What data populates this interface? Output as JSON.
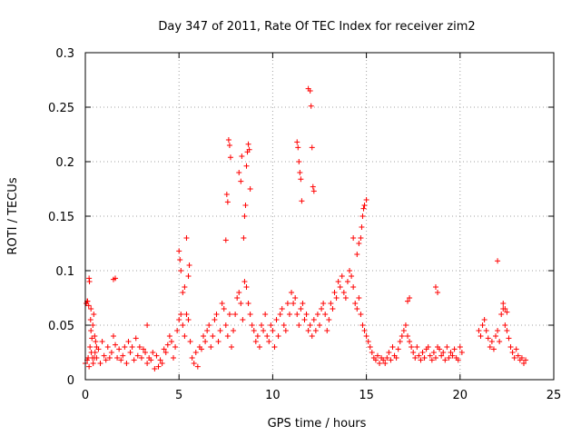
{
  "chart_data": {
    "type": "scatter",
    "title": "Day 347 of 2011, Rate Of TEC Index for receiver zim2",
    "xlabel": "GPS time / hours",
    "ylabel": "ROTI / TECUs",
    "xlim": [
      0,
      25
    ],
    "ylim": [
      0,
      0.3
    ],
    "x_ticks": [
      0,
      5,
      10,
      15,
      20,
      25
    ],
    "y_ticks": [
      0,
      0.05,
      0.1,
      0.15,
      0.2,
      0.25,
      0.3
    ],
    "x_tick_labels": [
      "0",
      "5",
      "10",
      "15",
      "20",
      "25"
    ],
    "y_tick_labels": [
      "0",
      "0.05",
      "0.1",
      "0.15",
      "0.2",
      "0.25",
      "0.3"
    ],
    "grid": true,
    "marker": "plus",
    "marker_color": "#ff0000",
    "series": [
      {
        "x": [
          0.0,
          0.1,
          0.15,
          0.2,
          0.25,
          0.3,
          0.35,
          0.4,
          0.45,
          0.5,
          0.55,
          0.6,
          0.05,
          0.12,
          0.18,
          0.22,
          0.28,
          0.32,
          0.38,
          0.42,
          0.48,
          0.52,
          0.6,
          0.7,
          0.8,
          0.9,
          1.0,
          1.1,
          1.2,
          1.3,
          1.4,
          1.5,
          1.6,
          1.7,
          1.8,
          1.9,
          2.0,
          2.1,
          2.2,
          2.3,
          2.4,
          2.5,
          2.6,
          2.7,
          2.8,
          2.9,
          3.0,
          3.1,
          3.2,
          3.3,
          3.4,
          3.5,
          3.6,
          3.7,
          3.8,
          3.9,
          4.0,
          4.1,
          4.2,
          4.3,
          4.4,
          4.5,
          4.6,
          4.7,
          4.8,
          4.9,
          5.0,
          5.1,
          5.2,
          5.3,
          5.4,
          5.5,
          5.6,
          5.7,
          5.8,
          5.9,
          6.0,
          6.1,
          6.2,
          6.3,
          6.4,
          6.5,
          6.6,
          6.7,
          6.8,
          6.9,
          7.0,
          7.1,
          7.2,
          7.3,
          7.4,
          7.5,
          7.6,
          7.7,
          7.8,
          7.9,
          8.0,
          8.1,
          8.2,
          8.3,
          8.4,
          8.5,
          8.6,
          8.7,
          8.8,
          8.9,
          9.0,
          9.1,
          9.2,
          9.3,
          9.4,
          9.5,
          9.6,
          9.7,
          9.8,
          9.9,
          10.0,
          10.1,
          10.2,
          10.3,
          10.4,
          10.5,
          10.6,
          10.7,
          10.8,
          10.9,
          11.0,
          11.1,
          11.2,
          11.3,
          11.4,
          11.5,
          11.6,
          11.7,
          11.8,
          11.9,
          12.0,
          12.1,
          12.2,
          12.3,
          12.4,
          12.5,
          12.6,
          12.7,
          12.8,
          12.9,
          13.0,
          13.1,
          13.2,
          13.3,
          13.4,
          13.5,
          13.6,
          13.7,
          13.8,
          13.9,
          14.0,
          14.1,
          14.2,
          14.3,
          14.4,
          14.5,
          14.6,
          14.7,
          14.8,
          14.9,
          15.0,
          15.1,
          15.2,
          15.3,
          15.4,
          15.5,
          15.6,
          15.7,
          15.8,
          15.9,
          16.0,
          16.1,
          16.2,
          16.3,
          16.4,
          16.5,
          16.6,
          16.7,
          16.8,
          16.9,
          17.0,
          17.1,
          17.2,
          17.3,
          17.4,
          17.5,
          17.6,
          17.7,
          17.8,
          17.9,
          18.0,
          18.1,
          18.2,
          18.3,
          18.4,
          18.5,
          18.6,
          18.7,
          18.8,
          18.9,
          19.0,
          19.1,
          19.2,
          19.3,
          19.4,
          19.5,
          19.6,
          19.7,
          19.8,
          19.9,
          20.0,
          20.1,
          21.0,
          21.1,
          21.2,
          21.3,
          21.4,
          21.5,
          21.6,
          21.7,
          21.8,
          21.9,
          22.0,
          22.1,
          22.2,
          22.3,
          22.4,
          22.5,
          22.6,
          22.7,
          22.8,
          22.9,
          23.0,
          23.1,
          23.2,
          23.3,
          23.4,
          23.5,
          0.1,
          0.2,
          0.3,
          1.5,
          1.6,
          3.3,
          5.0,
          5.05,
          5.1,
          5.2,
          5.3,
          5.4,
          5.5,
          5.55,
          7.5,
          7.55,
          7.6,
          7.65,
          7.7,
          7.75,
          8.2,
          8.3,
          8.35,
          8.45,
          8.5,
          8.55,
          8.6,
          8.65,
          8.7,
          8.75,
          8.8,
          11.3,
          11.35,
          11.4,
          11.45,
          11.5,
          11.55,
          11.9,
          12.0,
          12.05,
          12.1,
          12.15,
          12.2,
          14.3,
          14.5,
          14.6,
          14.7,
          14.75,
          14.8,
          14.85,
          14.9,
          15.0,
          17.2,
          17.3,
          18.7,
          18.8,
          22.0,
          22.3,
          22.4,
          22.5
        ],
        "y": [
          0.015,
          0.018,
          0.02,
          0.012,
          0.03,
          0.045,
          0.038,
          0.05,
          0.06,
          0.04,
          0.035,
          0.03,
          0.07,
          0.072,
          0.068,
          0.09,
          0.055,
          0.025,
          0.02,
          0.015,
          0.02,
          0.025,
          0.02,
          0.028,
          0.015,
          0.035,
          0.022,
          0.018,
          0.03,
          0.02,
          0.025,
          0.04,
          0.032,
          0.02,
          0.028,
          0.018,
          0.022,
          0.03,
          0.015,
          0.035,
          0.025,
          0.03,
          0.018,
          0.038,
          0.022,
          0.03,
          0.02,
          0.028,
          0.025,
          0.015,
          0.02,
          0.018,
          0.025,
          0.01,
          0.022,
          0.012,
          0.018,
          0.015,
          0.028,
          0.025,
          0.032,
          0.04,
          0.035,
          0.02,
          0.03,
          0.045,
          0.055,
          0.06,
          0.05,
          0.04,
          0.06,
          0.055,
          0.035,
          0.02,
          0.015,
          0.025,
          0.012,
          0.03,
          0.028,
          0.04,
          0.035,
          0.045,
          0.05,
          0.03,
          0.04,
          0.055,
          0.06,
          0.035,
          0.045,
          0.07,
          0.065,
          0.05,
          0.04,
          0.06,
          0.03,
          0.045,
          0.06,
          0.075,
          0.08,
          0.07,
          0.055,
          0.09,
          0.085,
          0.07,
          0.06,
          0.05,
          0.045,
          0.035,
          0.04,
          0.03,
          0.05,
          0.045,
          0.06,
          0.04,
          0.035,
          0.05,
          0.045,
          0.03,
          0.055,
          0.04,
          0.06,
          0.065,
          0.05,
          0.045,
          0.07,
          0.06,
          0.08,
          0.07,
          0.075,
          0.06,
          0.05,
          0.065,
          0.07,
          0.055,
          0.06,
          0.045,
          0.05,
          0.04,
          0.055,
          0.045,
          0.06,
          0.05,
          0.065,
          0.07,
          0.06,
          0.045,
          0.055,
          0.07,
          0.065,
          0.08,
          0.075,
          0.09,
          0.085,
          0.095,
          0.08,
          0.075,
          0.09,
          0.1,
          0.095,
          0.085,
          0.07,
          0.065,
          0.075,
          0.06,
          0.05,
          0.045,
          0.04,
          0.035,
          0.03,
          0.025,
          0.02,
          0.018,
          0.022,
          0.015,
          0.02,
          0.018,
          0.015,
          0.02,
          0.025,
          0.018,
          0.03,
          0.022,
          0.02,
          0.028,
          0.035,
          0.04,
          0.045,
          0.05,
          0.04,
          0.035,
          0.03,
          0.025,
          0.02,
          0.03,
          0.022,
          0.018,
          0.025,
          0.02,
          0.028,
          0.03,
          0.022,
          0.018,
          0.025,
          0.02,
          0.03,
          0.028,
          0.022,
          0.025,
          0.018,
          0.03,
          0.02,
          0.025,
          0.022,
          0.028,
          0.02,
          0.018,
          0.03,
          0.025,
          0.045,
          0.04,
          0.05,
          0.055,
          0.045,
          0.038,
          0.03,
          0.035,
          0.028,
          0.04,
          0.045,
          0.035,
          0.06,
          0.065,
          0.05,
          0.045,
          0.038,
          0.03,
          0.025,
          0.02,
          0.028,
          0.022,
          0.018,
          0.02,
          0.015,
          0.018,
          0.072,
          0.093,
          0.065,
          0.092,
          0.093,
          0.05,
          0.118,
          0.11,
          0.1,
          0.08,
          0.085,
          0.13,
          0.095,
          0.105,
          0.128,
          0.17,
          0.163,
          0.22,
          0.215,
          0.204,
          0.19,
          0.182,
          0.205,
          0.13,
          0.15,
          0.16,
          0.196,
          0.209,
          0.216,
          0.211,
          0.175,
          0.218,
          0.213,
          0.2,
          0.19,
          0.184,
          0.164,
          0.267,
          0.265,
          0.251,
          0.213,
          0.177,
          0.173,
          0.13,
          0.115,
          0.125,
          0.13,
          0.14,
          0.15,
          0.157,
          0.16,
          0.165,
          0.072,
          0.075,
          0.085,
          0.08,
          0.109,
          0.07,
          0.065,
          0.062
        ]
      }
    ]
  }
}
